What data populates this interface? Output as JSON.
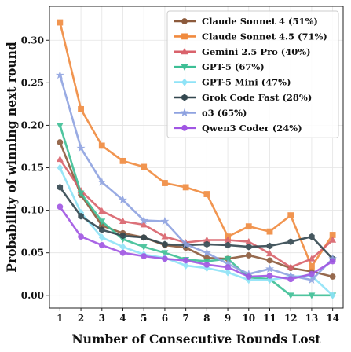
{
  "chart_data": {
    "type": "line",
    "xlabel": "Number of Consecutive Rounds Lost",
    "ylabel": "Probability of winning next round",
    "x": [
      1,
      2,
      3,
      4,
      5,
      6,
      7,
      8,
      9,
      10,
      11,
      12,
      13,
      14
    ],
    "xlim": [
      0.5,
      14.5
    ],
    "ylim": [
      -0.015,
      0.34
    ],
    "yticks": [
      "0.00",
      "0.05",
      "0.10",
      "0.15",
      "0.20",
      "0.25",
      "0.30"
    ],
    "ytick_values": [
      0.0,
      0.05,
      0.1,
      0.15,
      0.2,
      0.25,
      0.3
    ],
    "grid": true,
    "legend_position": "top-right",
    "series": [
      {
        "name": "Claude Sonnet 4 (51%)",
        "color": "#8c5a3c",
        "marker": "circle",
        "values": [
          0.18,
          0.118,
          0.082,
          0.073,
          0.068,
          0.059,
          0.056,
          0.044,
          0.043,
          0.047,
          0.041,
          0.032,
          0.028,
          0.022
        ]
      },
      {
        "name": "Claude Sonnet 4.5 (71%)",
        "color": "#f08a3e",
        "marker": "square",
        "values": [
          0.321,
          0.219,
          0.176,
          0.158,
          0.151,
          0.132,
          0.127,
          0.119,
          0.069,
          0.081,
          0.075,
          0.094,
          0.034,
          0.071
        ]
      },
      {
        "name": "Gemini 2.5 Pro (40%)",
        "color": "#d9626b",
        "marker": "triangle-up",
        "values": [
          0.16,
          0.123,
          0.099,
          0.087,
          0.083,
          0.069,
          0.062,
          0.065,
          0.065,
          0.063,
          0.049,
          0.033,
          0.043,
          0.065
        ]
      },
      {
        "name": "GPT-5 (67%)",
        "color": "#3dbf95",
        "marker": "triangle-down",
        "values": [
          0.2,
          0.12,
          0.087,
          0.066,
          0.057,
          0.05,
          0.042,
          0.04,
          0.043,
          0.021,
          0.019,
          0.0,
          0.0,
          0.0
        ]
      },
      {
        "name": "GPT-5 Mini (47%)",
        "color": "#8fe3f7",
        "marker": "diamond",
        "values": [
          0.15,
          0.097,
          0.068,
          0.057,
          0.048,
          0.044,
          0.035,
          0.032,
          0.027,
          0.018,
          0.018,
          0.022,
          0.023,
          0.0
        ]
      },
      {
        "name": "Grok Code Fast (28%)",
        "color": "#33474f",
        "marker": "hexagon",
        "values": [
          0.127,
          0.093,
          0.077,
          0.07,
          0.068,
          0.06,
          0.059,
          0.06,
          0.059,
          0.057,
          0.058,
          0.063,
          0.069,
          0.043
        ]
      },
      {
        "name": "o3 (65%)",
        "color": "#8ea2e0",
        "marker": "star",
        "values": [
          0.259,
          0.173,
          0.133,
          0.112,
          0.088,
          0.087,
          0.06,
          0.05,
          0.037,
          0.025,
          0.031,
          0.023,
          0.018,
          0.043
        ]
      },
      {
        "name": "Qwen3 Coder (24%)",
        "color": "#a055e3",
        "marker": "circle",
        "values": [
          0.104,
          0.069,
          0.059,
          0.05,
          0.046,
          0.043,
          0.041,
          0.036,
          0.033,
          0.022,
          0.023,
          0.019,
          0.025,
          0.04
        ]
      }
    ]
  }
}
